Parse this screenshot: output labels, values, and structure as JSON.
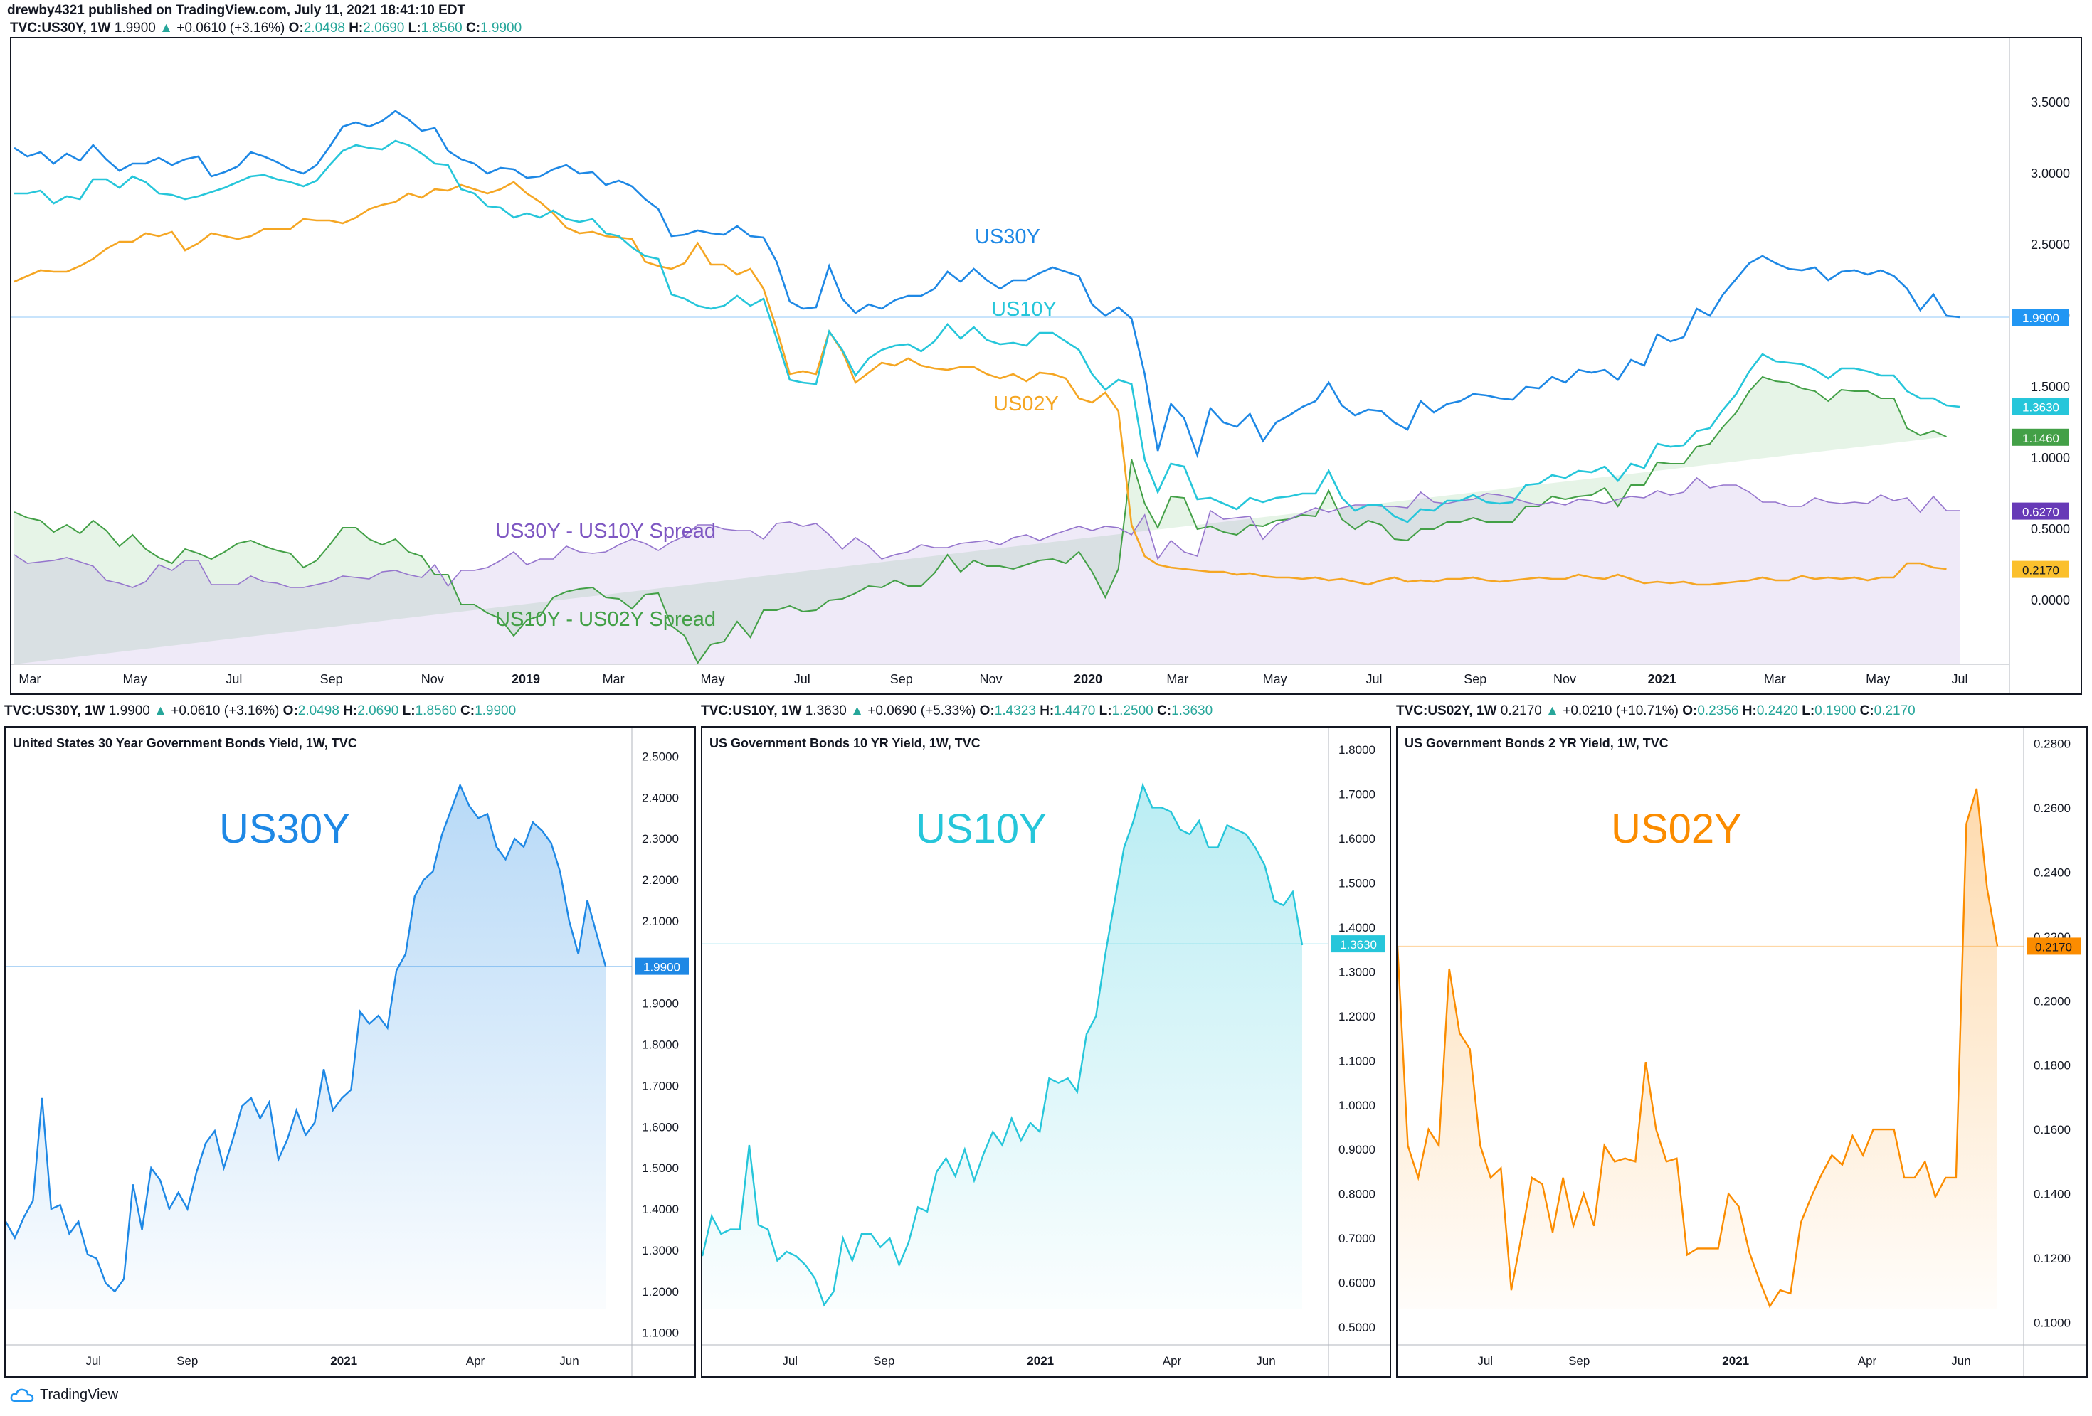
{
  "header": {
    "published": "drewby4321 published on TradingView.com, July 11, 2021 18:41:10 EDT",
    "symbol": "TVC:US30Y, 1W",
    "price": "1.9900",
    "change": "+0.0610 (+3.16%)",
    "o": "2.0498",
    "h": "2.0690",
    "l": "1.8560",
    "c": "1.9900"
  },
  "footer": {
    "brand": "TradingView"
  },
  "chart_data": [
    {
      "type": "line",
      "series": [
        {
          "name": "US30Y",
          "color": "#1e88e5",
          "values": [
            3.18,
            3.12,
            3.15,
            3.07,
            3.14,
            3.09,
            3.2,
            3.1,
            3.02,
            3.07,
            3.07,
            3.11,
            3.06,
            3.1,
            3.12,
            2.98,
            3.01,
            3.05,
            3.15,
            3.12,
            3.08,
            3.03,
            3.0,
            3.06,
            3.19,
            3.33,
            3.36,
            3.33,
            3.37,
            3.44,
            3.38,
            3.3,
            3.32,
            3.16,
            3.1,
            3.07,
            3.0,
            3.04,
            3.03,
            2.97,
            2.98,
            3.03,
            3.06,
            3.0,
            3.01,
            2.92,
            2.95,
            2.91,
            2.82,
            2.75,
            2.56,
            2.57,
            2.6,
            2.58,
            2.57,
            2.63,
            2.56,
            2.55,
            2.38,
            2.1,
            2.05,
            2.06,
            2.35,
            2.12,
            2.02,
            2.08,
            2.05,
            2.11,
            2.14,
            2.14,
            2.19,
            2.31,
            2.24,
            2.33,
            2.25,
            2.19,
            2.25,
            2.25,
            2.3,
            2.34,
            2.31,
            2.28,
            2.08,
            2.0,
            2.06,
            1.98,
            1.59,
            1.05,
            1.38,
            1.28,
            1.02,
            1.35,
            1.25,
            1.22,
            1.31,
            1.12,
            1.25,
            1.3,
            1.36,
            1.4,
            1.53,
            1.37,
            1.3,
            1.34,
            1.33,
            1.25,
            1.2,
            1.4,
            1.32,
            1.38,
            1.4,
            1.45,
            1.44,
            1.42,
            1.41,
            1.5,
            1.49,
            1.57,
            1.53,
            1.62,
            1.6,
            1.62,
            1.55,
            1.69,
            1.65,
            1.87,
            1.82,
            1.85,
            2.05,
            2.0,
            2.15,
            2.26,
            2.37,
            2.42,
            2.37,
            2.33,
            2.32,
            2.34,
            2.25,
            2.31,
            2.32,
            2.29,
            2.32,
            2.28,
            2.19,
            2.04,
            2.15,
            2.0,
            1.99
          ]
        },
        {
          "name": "US10Y",
          "color": "#26c6da",
          "values": [
            2.86,
            2.86,
            2.88,
            2.79,
            2.84,
            2.82,
            2.96,
            2.96,
            2.9,
            2.98,
            2.94,
            2.86,
            2.85,
            2.82,
            2.84,
            2.87,
            2.9,
            2.94,
            2.98,
            2.99,
            2.96,
            2.94,
            2.91,
            2.95,
            3.06,
            3.16,
            3.2,
            3.18,
            3.17,
            3.23,
            3.2,
            3.14,
            3.07,
            3.06,
            2.89,
            2.86,
            2.77,
            2.76,
            2.69,
            2.72,
            2.69,
            2.74,
            2.68,
            2.66,
            2.68,
            2.58,
            2.56,
            2.48,
            2.42,
            2.4,
            2.15,
            2.12,
            2.07,
            2.05,
            2.07,
            2.14,
            2.07,
            2.12,
            1.84,
            1.55,
            1.53,
            1.52,
            1.89,
            1.76,
            1.58,
            1.7,
            1.76,
            1.79,
            1.8,
            1.75,
            1.82,
            1.94,
            1.84,
            1.92,
            1.83,
            1.8,
            1.81,
            1.79,
            1.88,
            1.88,
            1.82,
            1.76,
            1.59,
            1.48,
            1.55,
            1.52,
            0.99,
            0.76,
            0.96,
            0.94,
            0.71,
            0.72,
            0.68,
            0.64,
            0.72,
            0.69,
            0.72,
            0.73,
            0.75,
            0.75,
            0.91,
            0.72,
            0.63,
            0.67,
            0.67,
            0.59,
            0.55,
            0.64,
            0.63,
            0.7,
            0.7,
            0.74,
            0.69,
            0.68,
            0.69,
            0.81,
            0.82,
            0.88,
            0.86,
            0.91,
            0.9,
            0.94,
            0.84,
            0.96,
            0.93,
            1.1,
            1.08,
            1.09,
            1.19,
            1.21,
            1.34,
            1.45,
            1.61,
            1.73,
            1.68,
            1.67,
            1.66,
            1.62,
            1.56,
            1.63,
            1.63,
            1.61,
            1.58,
            1.58,
            1.47,
            1.42,
            1.42,
            1.37,
            1.36
          ]
        },
        {
          "name": "US02Y",
          "color": "#f5a623",
          "values": [
            2.24,
            2.28,
            2.32,
            2.31,
            2.31,
            2.35,
            2.4,
            2.47,
            2.52,
            2.52,
            2.58,
            2.56,
            2.59,
            2.46,
            2.51,
            2.58,
            2.56,
            2.54,
            2.56,
            2.61,
            2.61,
            2.61,
            2.68,
            2.67,
            2.67,
            2.65,
            2.69,
            2.75,
            2.78,
            2.8,
            2.86,
            2.83,
            2.89,
            2.88,
            2.92,
            2.89,
            2.86,
            2.89,
            2.94,
            2.86,
            2.8,
            2.72,
            2.62,
            2.58,
            2.59,
            2.56,
            2.55,
            2.54,
            2.38,
            2.35,
            2.33,
            2.37,
            2.51,
            2.36,
            2.36,
            2.29,
            2.33,
            2.19,
            1.91,
            1.59,
            1.61,
            1.59,
            1.89,
            1.75,
            1.53,
            1.6,
            1.67,
            1.65,
            1.7,
            1.65,
            1.63,
            1.62,
            1.64,
            1.64,
            1.59,
            1.56,
            1.59,
            1.54,
            1.6,
            1.59,
            1.56,
            1.42,
            1.39,
            1.46,
            1.33,
            0.53,
            0.31,
            0.25,
            0.23,
            0.22,
            0.21,
            0.2,
            0.2,
            0.18,
            0.19,
            0.17,
            0.16,
            0.16,
            0.15,
            0.16,
            0.14,
            0.15,
            0.13,
            0.11,
            0.14,
            0.16,
            0.13,
            0.14,
            0.13,
            0.15,
            0.15,
            0.16,
            0.14,
            0.13,
            0.14,
            0.15,
            0.16,
            0.15,
            0.15,
            0.18,
            0.16,
            0.15,
            0.18,
            0.15,
            0.12,
            0.13,
            0.12,
            0.13,
            0.11,
            0.11,
            0.12,
            0.13,
            0.14,
            0.16,
            0.14,
            0.14,
            0.17,
            0.15,
            0.16,
            0.15,
            0.16,
            0.14,
            0.16,
            0.16,
            0.26,
            0.26,
            0.23,
            0.22
          ]
        }
      ],
      "annotations": [
        "US30Y",
        "US10Y",
        "US02Y",
        "US30Y - US10Y Spread",
        "US10Y - US02Y Spread"
      ],
      "spreads": [
        {
          "name": "US30Y - US10Y Spread",
          "color": "#7e57c2",
          "value": "0.6270"
        },
        {
          "name": "US10Y - US02Y Spread",
          "color": "#43a047",
          "value": "1.1460"
        }
      ],
      "price_labels": [
        "1.9900",
        "1.3630",
        "1.1460",
        "0.6270",
        "0.2170"
      ],
      "y_ticks": [
        "3.5000",
        "3.0000",
        "2.5000",
        "2.0000",
        "1.5000",
        "1.0000",
        "0.5000",
        "0.0000"
      ],
      "x_ticks": [
        "Mar",
        "May",
        "Jul",
        "Sep",
        "Nov",
        "2019",
        "Mar",
        "May",
        "Jul",
        "Sep",
        "Nov",
        "2020",
        "Mar",
        "May",
        "Jul",
        "Sep",
        "Nov",
        "2021",
        "Mar",
        "May",
        "Jul"
      ],
      "ylim": [
        -0.45,
        3.95
      ]
    },
    {
      "type": "area",
      "header": {
        "symbol": "TVC:US30Y, 1W",
        "price": "1.9900",
        "change": "+0.0610 (+3.16%)",
        "o": "2.0498",
        "h": "2.0690",
        "l": "1.8560",
        "c": "1.9900"
      },
      "title": "United States 30 Year Government Bonds Yield, 1W, TVC",
      "watermark": "US30Y",
      "color": "#1e88e5",
      "values": [
        1.37,
        1.33,
        1.38,
        1.42,
        1.67,
        1.4,
        1.41,
        1.34,
        1.37,
        1.29,
        1.28,
        1.22,
        1.2,
        1.23,
        1.46,
        1.35,
        1.5,
        1.47,
        1.4,
        1.44,
        1.4,
        1.49,
        1.56,
        1.59,
        1.5,
        1.57,
        1.65,
        1.67,
        1.62,
        1.66,
        1.52,
        1.57,
        1.64,
        1.58,
        1.61,
        1.74,
        1.64,
        1.67,
        1.69,
        1.88,
        1.85,
        1.87,
        1.84,
        1.98,
        2.02,
        2.16,
        2.2,
        2.22,
        2.31,
        2.37,
        2.43,
        2.38,
        2.35,
        2.36,
        2.28,
        2.25,
        2.3,
        2.28,
        2.34,
        2.32,
        2.29,
        2.22,
        2.1,
        2.02,
        2.15,
        2.07,
        1.99
      ],
      "current": "1.9900",
      "y_ticks": [
        "2.5000",
        "2.4000",
        "2.3000",
        "2.2000",
        "2.1000",
        "2.0000",
        "1.9000",
        "1.8000",
        "1.7000",
        "1.6000",
        "1.5000",
        "1.4000",
        "1.3000",
        "1.2000",
        "1.1000"
      ],
      "x_ticks": [
        "Jul",
        "Sep",
        "2021",
        "Apr",
        "Jun"
      ],
      "ylim": [
        1.07,
        2.57
      ]
    },
    {
      "type": "area",
      "header": {
        "symbol": "TVC:US10Y, 1W",
        "price": "1.3630",
        "change": "+0.0690 (+5.33%)",
        "o": "1.4323",
        "h": "1.4470",
        "l": "1.2500",
        "c": "1.3630"
      },
      "title": "US Government Bonds 10 YR Yield, 1W, TVC",
      "watermark": "US10Y",
      "color": "#26c6da",
      "values": [
        0.66,
        0.75,
        0.71,
        0.72,
        0.72,
        0.91,
        0.73,
        0.72,
        0.65,
        0.67,
        0.66,
        0.64,
        0.61,
        0.55,
        0.58,
        0.7,
        0.65,
        0.71,
        0.71,
        0.68,
        0.7,
        0.64,
        0.69,
        0.77,
        0.76,
        0.85,
        0.88,
        0.84,
        0.9,
        0.83,
        0.89,
        0.94,
        0.91,
        0.97,
        0.92,
        0.96,
        0.94,
        1.06,
        1.05,
        1.06,
        1.03,
        1.16,
        1.2,
        1.34,
        1.46,
        1.58,
        1.64,
        1.72,
        1.67,
        1.67,
        1.66,
        1.62,
        1.61,
        1.64,
        1.58,
        1.58,
        1.63,
        1.62,
        1.61,
        1.58,
        1.54,
        1.46,
        1.45,
        1.48,
        1.36
      ],
      "current": "1.3630",
      "y_ticks": [
        "1.8000",
        "1.7000",
        "1.6000",
        "1.5000",
        "1.4000",
        "1.3000",
        "1.2000",
        "1.1000",
        "1.0000",
        "0.9000",
        "0.8000",
        "0.7000",
        "0.6000",
        "0.5000"
      ],
      "x_ticks": [
        "Jul",
        "Sep",
        "2021",
        "Apr",
        "Jun"
      ],
      "ylim": [
        0.46,
        1.85
      ]
    },
    {
      "type": "area",
      "header": {
        "symbol": "TVC:US02Y, 1W",
        "price": "0.2170",
        "change": "+0.0210 (+10.71%)",
        "o": "0.2356",
        "h": "0.2420",
        "l": "0.1900",
        "c": "0.2170"
      },
      "title": "US Government Bonds 2 YR Yield, 1W, TVC",
      "watermark": "US02Y",
      "color": "#fb8c00",
      "values": [
        0.217,
        0.155,
        0.145,
        0.16,
        0.155,
        0.21,
        0.19,
        0.185,
        0.155,
        0.145,
        0.148,
        0.11,
        0.127,
        0.145,
        0.143,
        0.128,
        0.145,
        0.13,
        0.14,
        0.13,
        0.155,
        0.15,
        0.151,
        0.15,
        0.181,
        0.16,
        0.15,
        0.151,
        0.121,
        0.123,
        0.123,
        0.123,
        0.14,
        0.136,
        0.122,
        0.113,
        0.105,
        0.11,
        0.109,
        0.131,
        0.139,
        0.146,
        0.152,
        0.149,
        0.158,
        0.152,
        0.16,
        0.16,
        0.16,
        0.145,
        0.145,
        0.15,
        0.139,
        0.145,
        0.145,
        0.255,
        0.266,
        0.235,
        0.217
      ],
      "current": "0.2170",
      "y_ticks": [
        "0.2800",
        "0.2600",
        "0.2400",
        "0.2200",
        "0.2000",
        "0.1800",
        "0.1600",
        "0.1400",
        "0.1200",
        "0.1000"
      ],
      "x_ticks": [
        "Jul",
        "Sep",
        "2021",
        "Apr",
        "Jun"
      ],
      "ylim": [
        0.093,
        0.285
      ]
    }
  ]
}
